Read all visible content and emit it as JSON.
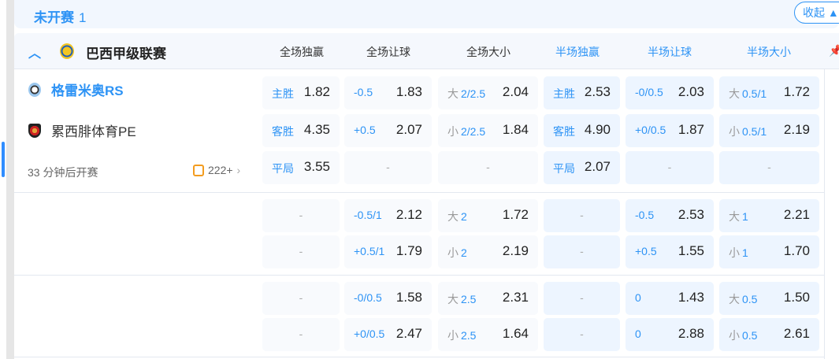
{
  "status": {
    "title": "未开赛",
    "count": "1",
    "collapse_label": "收起",
    "collapse_icon": "caret-up-icon"
  },
  "league": {
    "name": "巴西甲级联赛",
    "icon": "brazil-serie-a-logo"
  },
  "columns": [
    "全场独赢",
    "全场让球",
    "全场大小",
    "半场独赢",
    "半场让球",
    "半场大小"
  ],
  "match": {
    "home": "格雷米奥RS",
    "away": "累西腓体育PE",
    "kickoff": "33 分钟后开赛",
    "more_count": "222+"
  },
  "colors": {
    "accent": "#2d93f5",
    "full_cell": "#f8fafd",
    "half_cell": "#edf5ff"
  },
  "blocks": [
    [
      [
        {
          "k": "主胜",
          "o": "1.82"
        },
        {
          "l": "-0.5",
          "o": "1.83"
        },
        {
          "k": "大",
          "l": "2/2.5",
          "o": "2.04"
        },
        {
          "k": "主胜",
          "o": "2.53"
        },
        {
          "l": "-0/0.5",
          "o": "2.03"
        },
        {
          "k": "大",
          "l": "0.5/1",
          "o": "1.72"
        }
      ],
      [
        {
          "k": "客胜",
          "o": "4.35"
        },
        {
          "l": "+0.5",
          "o": "2.07"
        },
        {
          "k": "小",
          "l": "2/2.5",
          "o": "1.84"
        },
        {
          "k": "客胜",
          "o": "4.90"
        },
        {
          "l": "+0/0.5",
          "o": "1.87"
        },
        {
          "k": "小",
          "l": "0.5/1",
          "o": "2.19"
        }
      ],
      [
        {
          "k": "平局",
          "o": "3.55"
        },
        {
          "d": "-"
        },
        {
          "d": "-"
        },
        {
          "k": "平局",
          "o": "2.07"
        },
        {
          "d": "-"
        },
        {
          "d": "-"
        }
      ]
    ],
    [
      [
        {
          "d": "-"
        },
        {
          "l": "-0.5/1",
          "o": "2.12"
        },
        {
          "k": "大",
          "l": "2",
          "o": "1.72"
        },
        {
          "d": "-"
        },
        {
          "l": "-0.5",
          "o": "2.53"
        },
        {
          "k": "大",
          "l": "1",
          "o": "2.21"
        }
      ],
      [
        {
          "d": "-"
        },
        {
          "l": "+0.5/1",
          "o": "1.79"
        },
        {
          "k": "小",
          "l": "2",
          "o": "2.19"
        },
        {
          "d": "-"
        },
        {
          "l": "+0.5",
          "o": "1.55"
        },
        {
          "k": "小",
          "l": "1",
          "o": "1.70"
        }
      ]
    ],
    [
      [
        {
          "d": "-"
        },
        {
          "l": "-0/0.5",
          "o": "1.58"
        },
        {
          "k": "大",
          "l": "2.5",
          "o": "2.31"
        },
        {
          "d": "-"
        },
        {
          "l": "0",
          "o": "1.43"
        },
        {
          "k": "大",
          "l": "0.5",
          "o": "1.50"
        }
      ],
      [
        {
          "d": "-"
        },
        {
          "l": "+0/0.5",
          "o": "2.47"
        },
        {
          "k": "小",
          "l": "2.5",
          "o": "1.64"
        },
        {
          "d": "-"
        },
        {
          "l": "0",
          "o": "2.88"
        },
        {
          "k": "小",
          "l": "0.5",
          "o": "2.61"
        }
      ]
    ]
  ]
}
